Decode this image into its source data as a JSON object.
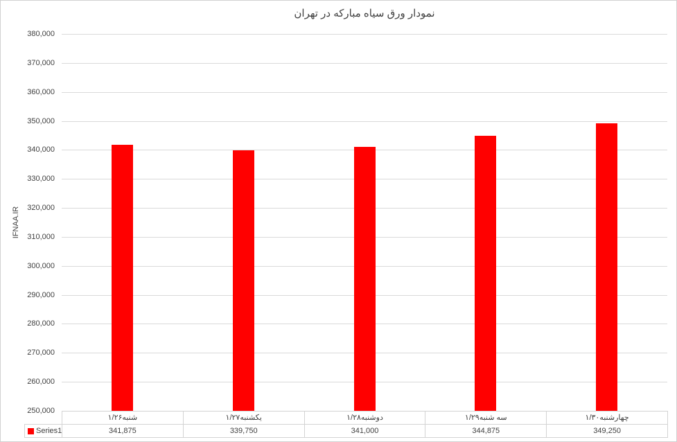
{
  "chart_data": {
    "type": "bar",
    "title": "نمودار ورق سیاه مبارکه در تهران",
    "ylabel": "IFNAA.IR",
    "series_name": "Series1",
    "categories": [
      "شنبه۱/۲۶",
      "یکشنبه۱/۲۷",
      "دوشنبه۱/۲۸",
      "سه شنبه۱/۲۹",
      "چهارشنبه۱/۳۰"
    ],
    "values": [
      341875,
      339750,
      341000,
      344875,
      349250
    ],
    "values_formatted": [
      "341,875",
      "339,750",
      "341,000",
      "344,875",
      "349,250"
    ],
    "ylim": [
      250000,
      380000
    ],
    "ytick_step": 10000,
    "ytick_labels": [
      "380,000",
      "370,000",
      "360,000",
      "350,000",
      "340,000",
      "330,000",
      "320,000",
      "310,000",
      "300,000",
      "290,000",
      "280,000",
      "270,000",
      "260,000",
      "250,000"
    ],
    "bar_color": "#ff0000",
    "gridline_color": "#d9d9d9",
    "text_color": "#404040",
    "table_border_color": "#d3d3d3",
    "grid": true,
    "legend_position": "bottom-left",
    "data_table_shown": true
  }
}
